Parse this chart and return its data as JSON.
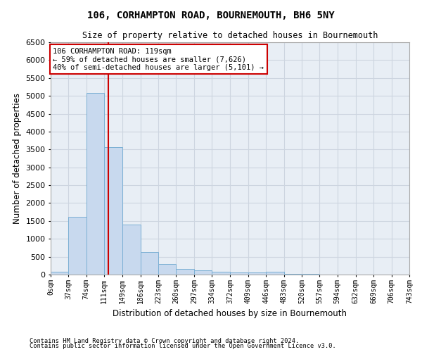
{
  "title1": "106, CORHAMPTON ROAD, BOURNEMOUTH, BH6 5NY",
  "title2": "Size of property relative to detached houses in Bournemouth",
  "xlabel": "Distribution of detached houses by size in Bournemouth",
  "ylabel": "Number of detached properties",
  "footer1": "Contains HM Land Registry data © Crown copyright and database right 2024.",
  "footer2": "Contains public sector information licensed under the Open Government Licence v3.0.",
  "bin_edges": [
    0,
    37,
    74,
    111,
    149,
    186,
    223,
    260,
    297,
    334,
    372,
    409,
    446,
    483,
    520,
    557,
    594,
    632,
    669,
    706,
    743
  ],
  "bar_values": [
    80,
    1625,
    5075,
    3575,
    1400,
    625,
    300,
    150,
    110,
    75,
    55,
    50,
    80,
    20,
    10,
    5,
    3,
    2,
    1,
    1
  ],
  "bar_color": "#c8d9ee",
  "bar_edge_color": "#7bafd4",
  "property_line_x": 119,
  "property_line_color": "#cc0000",
  "annotation_line1": "106 CORHAMPTON ROAD: 119sqm",
  "annotation_line2": "← 59% of detached houses are smaller (7,626)",
  "annotation_line3": "40% of semi-detached houses are larger (5,101) →",
  "annotation_box_color": "#ffffff",
  "annotation_box_edge": "#cc0000",
  "ylim": [
    0,
    6500
  ],
  "yticks": [
    0,
    500,
    1000,
    1500,
    2000,
    2500,
    3000,
    3500,
    4000,
    4500,
    5000,
    5500,
    6000,
    6500
  ],
  "grid_color": "#cdd5e0",
  "background_color": "#e8eef5",
  "fig_width": 6.0,
  "fig_height": 5.0,
  "dpi": 100
}
